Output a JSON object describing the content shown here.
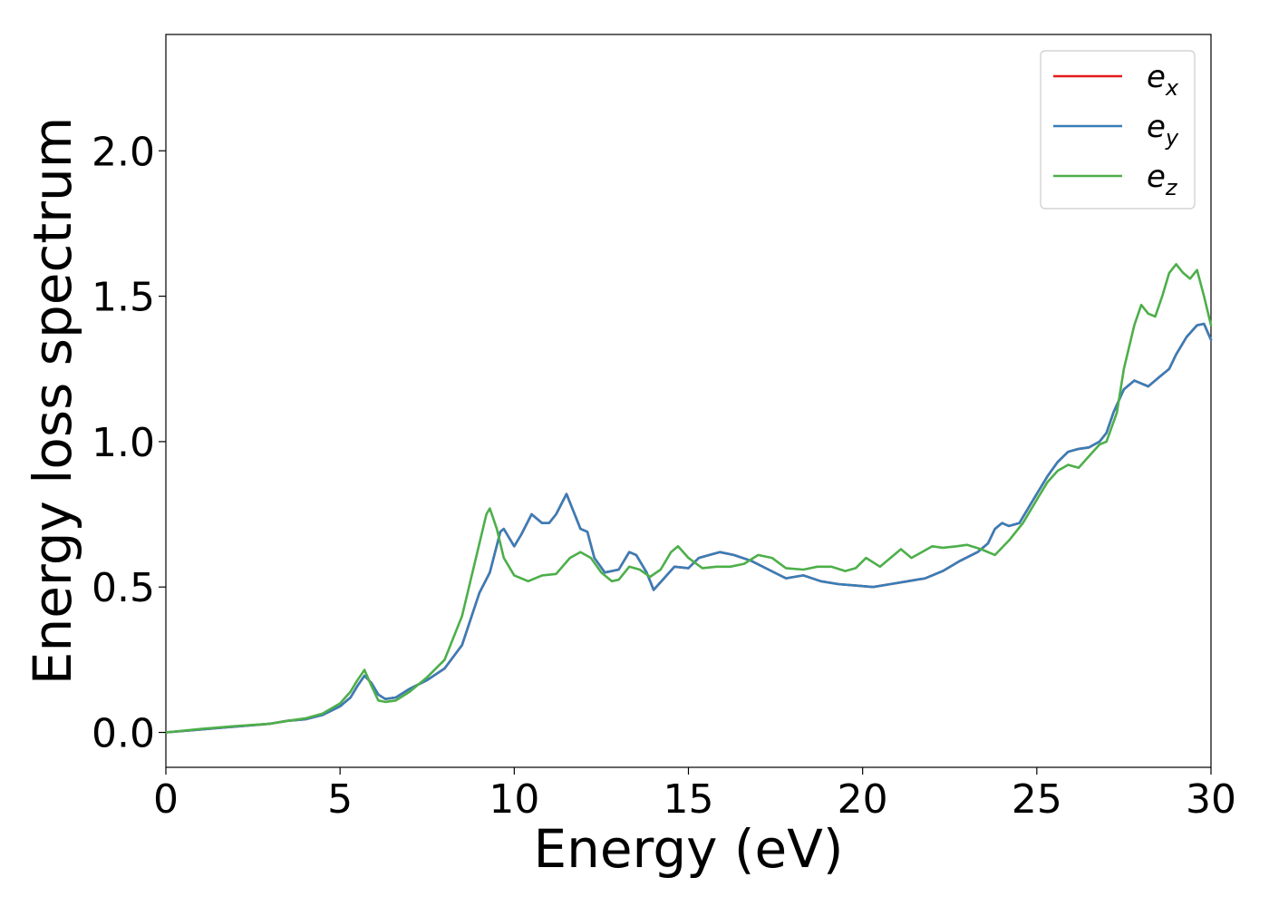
{
  "chart_data": {
    "type": "line",
    "title": "",
    "xlabel": "Energy (eV)",
    "ylabel": "Energy loss spectrum",
    "xlim": [
      0,
      30
    ],
    "ylim": [
      -0.12,
      2.4
    ],
    "xticks": [
      0,
      5,
      10,
      15,
      20,
      25,
      30
    ],
    "xtick_labels": [
      "0",
      "5",
      "10",
      "15",
      "20",
      "25",
      "30"
    ],
    "yticks": [
      0.0,
      0.5,
      1.0,
      1.5,
      2.0
    ],
    "ytick_labels": [
      "0.0",
      "0.5",
      "1.0",
      "1.5",
      "2.0"
    ],
    "grid": false,
    "legend_position": "top-right",
    "series": [
      {
        "name": "e_x",
        "legend_base": "e",
        "legend_sub": "x",
        "color": "#e41a1c",
        "x": [
          0,
          1,
          2,
          3,
          3.5,
          4,
          4.5,
          5,
          5.3,
          5.5,
          5.7,
          5.9,
          6.1,
          6.3,
          6.6,
          7,
          7.5,
          8,
          8.5,
          9,
          9.3,
          9.6,
          9.7,
          9.8,
          10,
          10.2,
          10.5,
          10.8,
          11,
          11.2,
          11.5,
          11.7,
          11.9,
          12.1,
          12.3,
          12.6,
          13,
          13.3,
          13.5,
          13.8,
          14,
          14.3,
          14.6,
          15,
          15.3,
          15.6,
          15.9,
          16.3,
          16.8,
          17.3,
          17.8,
          18.3,
          18.8,
          19.3,
          19.8,
          20.3,
          20.8,
          21.3,
          21.8,
          22.3,
          22.8,
          23.3,
          23.6,
          23.8,
          24,
          24.2,
          24.5,
          24.8,
          25,
          25.3,
          25.6,
          25.9,
          26.2,
          26.5,
          26.8,
          27,
          27.2,
          27.5,
          27.8,
          28,
          28.2,
          28.5,
          28.8,
          29,
          29.3,
          29.6,
          29.8,
          30
        ],
        "y": [
          0,
          0.01,
          0.02,
          0.03,
          0.04,
          0.045,
          0.06,
          0.09,
          0.12,
          0.16,
          0.195,
          0.17,
          0.13,
          0.115,
          0.12,
          0.15,
          0.18,
          0.22,
          0.3,
          0.48,
          0.55,
          0.69,
          0.7,
          0.68,
          0.64,
          0.68,
          0.75,
          0.72,
          0.72,
          0.75,
          0.82,
          0.76,
          0.7,
          0.69,
          0.6,
          0.55,
          0.56,
          0.62,
          0.61,
          0.55,
          0.49,
          0.53,
          0.57,
          0.565,
          0.6,
          0.61,
          0.62,
          0.61,
          0.59,
          0.56,
          0.53,
          0.54,
          0.52,
          0.51,
          0.505,
          0.5,
          0.51,
          0.52,
          0.53,
          0.555,
          0.59,
          0.62,
          0.65,
          0.7,
          0.72,
          0.71,
          0.72,
          0.78,
          0.82,
          0.88,
          0.93,
          0.965,
          0.975,
          0.98,
          1.0,
          1.03,
          1.1,
          1.18,
          1.21,
          1.2,
          1.19,
          1.22,
          1.25,
          1.3,
          1.36,
          1.4,
          1.405,
          1.35
        ]
      },
      {
        "name": "e_y",
        "legend_base": "e",
        "legend_sub": "y",
        "color": "#377eb8",
        "x": [
          0,
          1,
          2,
          3,
          3.5,
          4,
          4.5,
          5,
          5.3,
          5.5,
          5.7,
          5.9,
          6.1,
          6.3,
          6.6,
          7,
          7.5,
          8,
          8.5,
          9,
          9.3,
          9.6,
          9.7,
          9.8,
          10,
          10.2,
          10.5,
          10.8,
          11,
          11.2,
          11.5,
          11.7,
          11.9,
          12.1,
          12.3,
          12.6,
          13,
          13.3,
          13.5,
          13.8,
          14,
          14.3,
          14.6,
          15,
          15.3,
          15.6,
          15.9,
          16.3,
          16.8,
          17.3,
          17.8,
          18.3,
          18.8,
          19.3,
          19.8,
          20.3,
          20.8,
          21.3,
          21.8,
          22.3,
          22.8,
          23.3,
          23.6,
          23.8,
          24,
          24.2,
          24.5,
          24.8,
          25,
          25.3,
          25.6,
          25.9,
          26.2,
          26.5,
          26.8,
          27,
          27.2,
          27.5,
          27.8,
          28,
          28.2,
          28.5,
          28.8,
          29,
          29.3,
          29.6,
          29.8,
          30
        ],
        "y": [
          0,
          0.01,
          0.02,
          0.03,
          0.04,
          0.045,
          0.06,
          0.09,
          0.12,
          0.16,
          0.195,
          0.17,
          0.13,
          0.115,
          0.12,
          0.15,
          0.18,
          0.22,
          0.3,
          0.48,
          0.55,
          0.69,
          0.7,
          0.68,
          0.64,
          0.68,
          0.75,
          0.72,
          0.72,
          0.75,
          0.82,
          0.76,
          0.7,
          0.69,
          0.6,
          0.55,
          0.56,
          0.62,
          0.61,
          0.55,
          0.49,
          0.53,
          0.57,
          0.565,
          0.6,
          0.61,
          0.62,
          0.61,
          0.59,
          0.56,
          0.53,
          0.54,
          0.52,
          0.51,
          0.505,
          0.5,
          0.51,
          0.52,
          0.53,
          0.555,
          0.59,
          0.62,
          0.65,
          0.7,
          0.72,
          0.71,
          0.72,
          0.78,
          0.82,
          0.88,
          0.93,
          0.965,
          0.975,
          0.98,
          1.0,
          1.03,
          1.1,
          1.18,
          1.21,
          1.2,
          1.19,
          1.22,
          1.25,
          1.3,
          1.36,
          1.4,
          1.405,
          1.35
        ]
      },
      {
        "name": "e_z",
        "legend_base": "e",
        "legend_sub": "z",
        "color": "#4daf4a",
        "x": [
          0,
          1,
          2,
          3,
          3.5,
          4,
          4.5,
          5,
          5.3,
          5.5,
          5.7,
          5.9,
          6.1,
          6.3,
          6.6,
          7,
          7.5,
          8,
          8.5,
          8.9,
          9.2,
          9.3,
          9.5,
          9.7,
          10,
          10.4,
          10.8,
          11.2,
          11.6,
          11.9,
          12.2,
          12.5,
          12.8,
          13,
          13.3,
          13.6,
          13.9,
          14.2,
          14.5,
          14.7,
          15,
          15.4,
          15.8,
          16.2,
          16.6,
          17,
          17.4,
          17.8,
          18.3,
          18.7,
          19.1,
          19.5,
          19.8,
          20.1,
          20.5,
          20.8,
          21.1,
          21.4,
          21.7,
          22,
          22.3,
          22.7,
          23,
          23.4,
          23.8,
          24.2,
          24.6,
          25,
          25.3,
          25.6,
          25.9,
          26.2,
          26.5,
          26.8,
          27,
          27.3,
          27.5,
          27.8,
          28,
          28.2,
          28.4,
          28.6,
          28.8,
          29,
          29.2,
          29.4,
          29.6,
          29.8,
          30
        ],
        "y": [
          0,
          0.012,
          0.022,
          0.03,
          0.04,
          0.048,
          0.065,
          0.1,
          0.14,
          0.18,
          0.215,
          0.16,
          0.11,
          0.105,
          0.11,
          0.14,
          0.19,
          0.25,
          0.4,
          0.6,
          0.75,
          0.77,
          0.7,
          0.6,
          0.54,
          0.52,
          0.54,
          0.545,
          0.6,
          0.62,
          0.6,
          0.55,
          0.52,
          0.525,
          0.57,
          0.56,
          0.535,
          0.56,
          0.62,
          0.64,
          0.6,
          0.565,
          0.57,
          0.57,
          0.58,
          0.61,
          0.6,
          0.565,
          0.56,
          0.57,
          0.57,
          0.555,
          0.565,
          0.6,
          0.57,
          0.6,
          0.63,
          0.6,
          0.62,
          0.64,
          0.635,
          0.64,
          0.645,
          0.63,
          0.61,
          0.66,
          0.72,
          0.8,
          0.86,
          0.9,
          0.92,
          0.91,
          0.95,
          0.99,
          1.0,
          1.1,
          1.25,
          1.4,
          1.47,
          1.44,
          1.43,
          1.5,
          1.58,
          1.61,
          1.58,
          1.56,
          1.59,
          1.5,
          1.4
        ]
      }
    ]
  }
}
